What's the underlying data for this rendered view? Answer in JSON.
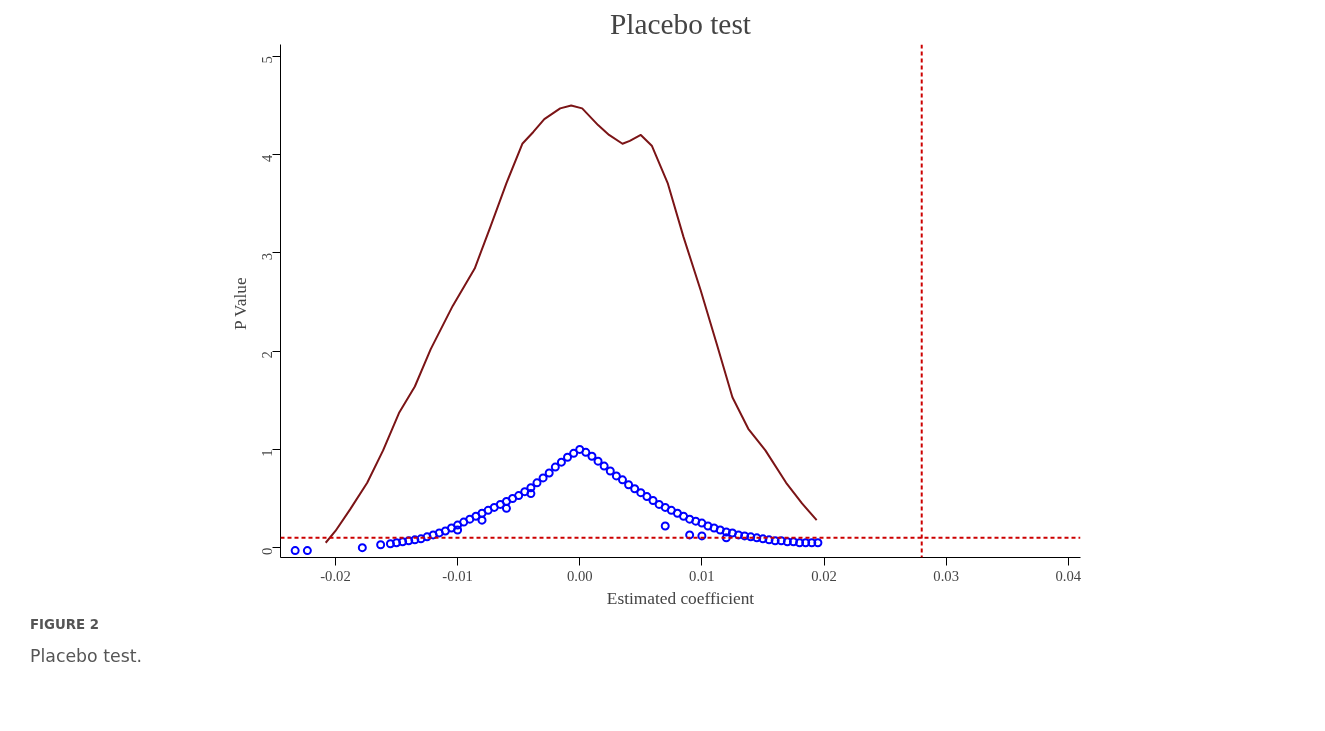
{
  "chart_data": {
    "type": "scatter",
    "title": "Placebo test",
    "xlabel": "Estimated coefficient",
    "ylabel": "P  Value",
    "xlim": [
      -0.0245,
      0.041
    ],
    "ylim": [
      -0.1,
      5.12
    ],
    "xticks": [
      {
        "value": -0.02,
        "label": "-0.02"
      },
      {
        "value": -0.01,
        "label": "-0.01"
      },
      {
        "value": 0,
        "label": "0.00"
      },
      {
        "value": 0.01,
        "label": "0.01"
      },
      {
        "value": 0.02,
        "label": "0.02"
      },
      {
        "value": 0.03,
        "label": "0.03"
      },
      {
        "value": 0.04,
        "label": "0.04"
      }
    ],
    "yticks": [
      0,
      1,
      2,
      3,
      4,
      5
    ],
    "grid": false,
    "series": [
      {
        "type": "line",
        "color": "#7b1416",
        "line_style": "solid",
        "x": [
          -0.0208,
          -0.02,
          -0.0188,
          -0.0174,
          -0.0161,
          -0.0148,
          -0.0135,
          -0.0122,
          -0.0104,
          -0.0086,
          -0.0073,
          -0.006,
          -0.0047,
          -0.0038,
          -0.0029,
          -0.0016,
          -0.0007,
          0.0002,
          0.0015,
          0.0024,
          0.0035,
          0.0041,
          0.005,
          0.0059,
          0.0072,
          0.0085,
          0.0099,
          0.0112,
          0.0125,
          0.0138,
          0.0152,
          0.0169,
          0.0182,
          0.0194
        ],
        "values": [
          0.05,
          0.17,
          0.39,
          0.66,
          0.99,
          1.37,
          1.64,
          2.02,
          2.46,
          2.84,
          3.27,
          3.71,
          4.11,
          4.23,
          4.36,
          4.47,
          4.5,
          4.47,
          4.3,
          4.2,
          4.11,
          4.14,
          4.2,
          4.09,
          3.71,
          3.16,
          2.62,
          2.08,
          1.53,
          1.21,
          0.99,
          0.66,
          0.45,
          0.28
        ]
      },
      {
        "color": "#0000ff",
        "marker": "circle",
        "x": [
          -0.0233,
          -0.0223,
          -0.0178,
          -0.0163,
          -0.0155,
          -0.015,
          -0.0145,
          -0.014,
          -0.0135,
          -0.013,
          -0.0125,
          -0.012,
          -0.0115,
          -0.011,
          -0.0105,
          -0.01,
          -0.0095,
          -0.009,
          -0.0085,
          -0.008,
          -0.0075,
          -0.007,
          -0.0065,
          -0.006,
          -0.0055,
          -0.005,
          -0.0045,
          -0.004,
          -0.0035,
          -0.003,
          -0.0025,
          -0.002,
          -0.0015,
          -0.001,
          -0.0005,
          0,
          -0.008,
          -0.006,
          -0.004,
          -0.01,
          0.0005,
          0.001,
          0.0015,
          0.002,
          0.0025,
          0.003,
          0.0035,
          0.004,
          0.0045,
          0.005,
          0.0055,
          0.006,
          0.0065,
          0.007,
          0.0075,
          0.008,
          0.0085,
          0.009,
          0.0095,
          0.01,
          0.0105,
          0.011,
          0.0115,
          0.012,
          0.0125,
          0.013,
          0.0135,
          0.014,
          0.0145,
          0.015,
          0.0155,
          0.016,
          0.0165,
          0.017,
          0.0175,
          0.018,
          0.0185,
          0.019,
          0.0195,
          0.009,
          0.01,
          0.007,
          0.012
        ],
        "values": [
          -0.03,
          -0.03,
          0.0,
          0.03,
          0.04,
          0.05,
          0.06,
          0.07,
          0.08,
          0.09,
          0.11,
          0.13,
          0.15,
          0.17,
          0.2,
          0.23,
          0.26,
          0.29,
          0.32,
          0.35,
          0.38,
          0.41,
          0.44,
          0.47,
          0.5,
          0.53,
          0.57,
          0.61,
          0.66,
          0.71,
          0.76,
          0.82,
          0.87,
          0.92,
          0.96,
          1.0,
          0.28,
          0.4,
          0.55,
          0.18,
          0.97,
          0.93,
          0.88,
          0.83,
          0.78,
          0.73,
          0.69,
          0.64,
          0.6,
          0.56,
          0.52,
          0.48,
          0.44,
          0.41,
          0.38,
          0.35,
          0.32,
          0.29,
          0.27,
          0.25,
          0.22,
          0.2,
          0.18,
          0.16,
          0.15,
          0.13,
          0.12,
          0.11,
          0.1,
          0.09,
          0.08,
          0.07,
          0.07,
          0.06,
          0.06,
          0.05,
          0.05,
          0.05,
          0.05,
          0.13,
          0.12,
          0.22,
          0.1
        ]
      }
    ],
    "ref_lines": [
      {
        "axis": "x",
        "value": 0.028,
        "color": "#cc0000",
        "line_style": "dashed"
      },
      {
        "axis": "y",
        "value": 0.1,
        "color": "#cc0000",
        "line_style": "dashed"
      }
    ],
    "annotations": [
      "FIGURE 2",
      "Placebo test."
    ]
  }
}
